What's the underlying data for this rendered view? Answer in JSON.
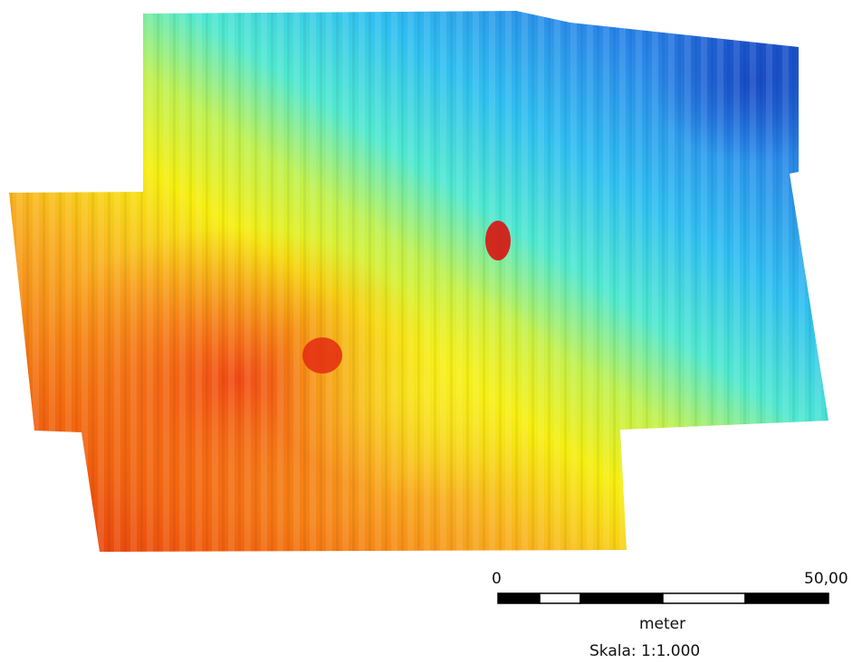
{
  "map": {
    "type": "bathymetric-depth-survey",
    "color_ramp": [
      "#e03010",
      "#f06010",
      "#f8a020",
      "#f6f000",
      "#b8f060",
      "#30e0e0",
      "#40b0f0",
      "#2070e0",
      "#1040c0"
    ],
    "features": [
      {
        "name": "depression-1",
        "color": "#d81410"
      },
      {
        "name": "depression-2",
        "color": "#e42a12"
      }
    ]
  },
  "scale_bar": {
    "start_label": "0",
    "end_label": "50,00",
    "unit_label": "meter",
    "scale_text": "Skala: 1:1.000",
    "segment_colors": [
      "#000000",
      "#ffffff",
      "#000000",
      "#ffffff",
      "#000000"
    ]
  }
}
